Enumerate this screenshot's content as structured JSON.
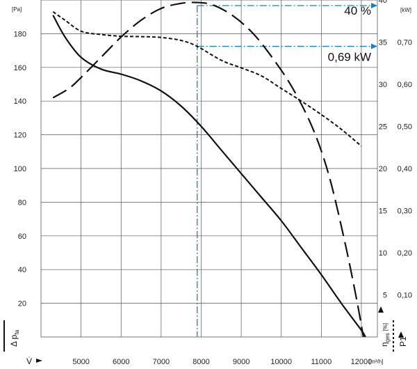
{
  "chart_data": {
    "type": "line",
    "x_unit": "[m³/h]",
    "x_ticks": [
      "5000",
      "6000",
      "7000",
      "8000",
      "9000",
      "10000",
      "11000",
      "12000"
    ],
    "xlim": [
      4000,
      12400
    ],
    "left_axis": {
      "unit": "[Pa]",
      "ticks": [
        "20",
        "40",
        "60",
        "80",
        "100",
        "120",
        "140",
        "160",
        "180"
      ],
      "ylim": [
        0,
        200
      ]
    },
    "eff_axis": {
      "unit": "",
      "ticks": [
        "5",
        "10",
        "15",
        "20",
        "25",
        "30",
        "35",
        "40"
      ],
      "ylim": [
        0,
        40
      ]
    },
    "power_axis": {
      "unit": "[kW]",
      "ticks": [
        "0,10",
        "0,20",
        "0,30",
        "0,40",
        "0,50",
        "0,60",
        "0,70"
      ],
      "ylim": [
        0,
        0.8
      ]
    },
    "axis_labels": {
      "x_symbol": "V̇",
      "pressure": "Δ p",
      "pressure_sub": "fa",
      "efficiency": "η",
      "efficiency_sub": "ges",
      "efficiency_unit": "[%]",
      "power": "P1"
    },
    "series": [
      {
        "style": "solid",
        "axis": "left",
        "x": [
          4300,
          4600,
          5000,
          5500,
          6000,
          6500,
          7000,
          7500,
          8000,
          8500,
          9000,
          9500,
          10000,
          10500,
          11000,
          11500,
          12000,
          12100
        ],
        "y": [
          191,
          178,
          166,
          159,
          156,
          152,
          146,
          137,
          125,
          111,
          97,
          83,
          69,
          53,
          37,
          20,
          4,
          0
        ]
      },
      {
        "style": "dashed",
        "axis": "efficiency",
        "x": [
          4300,
          4700,
          5000,
          5500,
          6000,
          6500,
          7000,
          7500,
          7900,
          8300,
          8800,
          9300,
          9800,
          10300,
          10800,
          11200,
          11600,
          11900,
          12050
        ],
        "y": [
          28.4,
          29.5,
          30.8,
          33.2,
          35.6,
          37.6,
          39.0,
          39.6,
          39.7,
          39.4,
          38.1,
          36.0,
          33.0,
          29.4,
          24.6,
          19.0,
          11.0,
          4.0,
          0
        ]
      },
      {
        "style": "dotted",
        "axis": "power",
        "x": [
          4300,
          4600,
          5000,
          5500,
          6000,
          6500,
          7000,
          7500,
          7900,
          8500,
          9000,
          9500,
          10000,
          10500,
          11000,
          11500,
          12000
        ],
        "y": [
          0.772,
          0.752,
          0.726,
          0.718,
          0.714,
          0.713,
          0.711,
          0.704,
          0.69,
          0.657,
          0.639,
          0.62,
          0.59,
          0.56,
          0.528,
          0.493,
          0.453
        ]
      }
    ],
    "operating_point": {
      "x": 7900,
      "efficiency_label": "40 %",
      "efficiency_value": 40,
      "power_label": "0,69 kW",
      "power_value": 0.69
    },
    "grid": true,
    "colors": {
      "curve": "#111111",
      "grid": "#555555",
      "marker": "#1f7ec2"
    }
  }
}
